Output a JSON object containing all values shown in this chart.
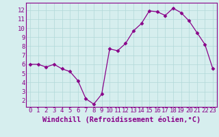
{
  "x": [
    0,
    1,
    2,
    3,
    4,
    5,
    6,
    7,
    8,
    9,
    10,
    11,
    12,
    13,
    14,
    15,
    16,
    17,
    18,
    19,
    20,
    21,
    22,
    23
  ],
  "y": [
    6.0,
    6.0,
    5.7,
    6.0,
    5.5,
    5.2,
    4.2,
    2.2,
    1.6,
    2.7,
    7.7,
    7.5,
    8.3,
    9.7,
    10.5,
    11.9,
    11.8,
    11.4,
    12.2,
    11.7,
    10.8,
    9.5,
    8.2,
    5.5
  ],
  "line_color": "#880088",
  "marker": "D",
  "marker_size": 2.5,
  "background_color": "#d6eeee",
  "grid_color": "#b0d8d8",
  "xlabel": "Windchill (Refroidissement éolien,°C)",
  "xlabel_fontsize": 7.5,
  "xlim": [
    -0.5,
    23.5
  ],
  "ylim": [
    1.3,
    12.8
  ],
  "yticks": [
    2,
    3,
    4,
    5,
    6,
    7,
    8,
    9,
    10,
    11,
    12
  ],
  "xticks": [
    0,
    1,
    2,
    3,
    4,
    5,
    6,
    7,
    8,
    9,
    10,
    11,
    12,
    13,
    14,
    15,
    16,
    17,
    18,
    19,
    20,
    21,
    22,
    23
  ],
  "tick_fontsize": 6.5,
  "tick_color": "#880088",
  "spine_color": "#880088"
}
